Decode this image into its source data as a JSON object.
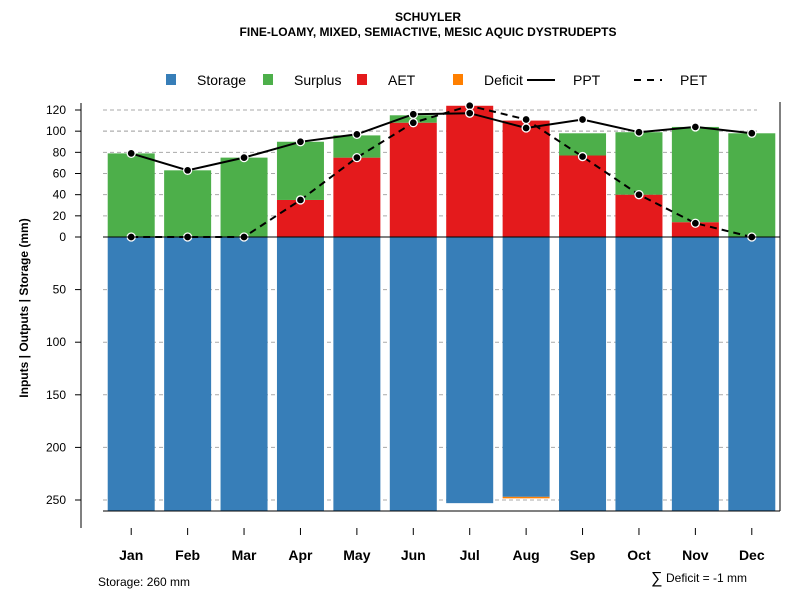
{
  "chart_data": {
    "type": "bar",
    "title": "SCHUYLER",
    "subtitle": "FINE-LOAMY, MIXED, SEMIACTIVE, MESIC AQUIC DYSTRUDEPTS",
    "ylabel": "Inputs | Outputs | Storage    (mm)",
    "categories": [
      "Jan",
      "Feb",
      "Mar",
      "Apr",
      "May",
      "Jun",
      "Jul",
      "Aug",
      "Sep",
      "Oct",
      "Nov",
      "Dec"
    ],
    "y_ticks_upper": [
      0,
      20,
      40,
      60,
      80,
      100,
      120
    ],
    "y_ticks_lower": [
      50,
      100,
      150,
      200,
      250
    ],
    "ylim": [
      -260,
      125
    ],
    "legend": [
      {
        "key": "storage",
        "label": "Storage",
        "color": "#377eb8",
        "kind": "box"
      },
      {
        "key": "surplus",
        "label": "Surplus",
        "color": "#4daf4a",
        "kind": "box"
      },
      {
        "key": "aet",
        "label": "AET",
        "color": "#e41a1c",
        "kind": "box"
      },
      {
        "key": "deficit",
        "label": "Deficit",
        "color": "#ff7f00",
        "kind": "box"
      },
      {
        "key": "ppt",
        "label": "PPT",
        "color": "#000000",
        "kind": "solid"
      },
      {
        "key": "pet",
        "label": "PET",
        "color": "#000000",
        "kind": "dashed"
      }
    ],
    "series": [
      {
        "name": "AET",
        "color": "#e41a1c",
        "values": [
          0,
          0,
          0,
          35,
          75,
          108,
          124,
          110,
          77,
          40,
          14,
          0
        ]
      },
      {
        "name": "Surplus",
        "color": "#4daf4a",
        "values": [
          79,
          63,
          75,
          55,
          21,
          7,
          0,
          0,
          21,
          59,
          90,
          98
        ]
      },
      {
        "name": "Storage",
        "color": "#377eb8",
        "values": [
          260,
          260,
          260,
          260,
          260,
          260,
          253,
          247,
          260,
          260,
          260,
          260
        ]
      },
      {
        "name": "Deficit",
        "color": "#ff7f00",
        "values": [
          0,
          0,
          0,
          0,
          0,
          0,
          0,
          -1,
          0,
          0,
          0,
          0
        ]
      },
      {
        "name": "PPT",
        "color": "#000000",
        "values": [
          79,
          63,
          75,
          90,
          97,
          116,
          117,
          103,
          111,
          99,
          104,
          98
        ]
      },
      {
        "name": "PET",
        "color": "#000000",
        "values": [
          0,
          0,
          0,
          35,
          75,
          108,
          124,
          111,
          76,
          40,
          13,
          0
        ]
      }
    ],
    "storage_note": "Storage: 260 mm",
    "deficit_note": "Deficit = -1 mm",
    "deficit_symbol": "∑"
  }
}
